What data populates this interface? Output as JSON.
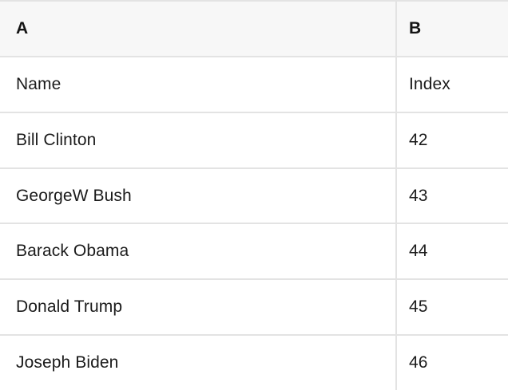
{
  "table": {
    "column_headers": [
      "A",
      "B"
    ],
    "rows": [
      {
        "a": "Name",
        "b": "Index"
      },
      {
        "a": "Bill Clinton",
        "b": "42"
      },
      {
        "a": "GeorgeW Bush",
        "b": "43"
      },
      {
        "a": "Barack Obama",
        "b": "44"
      },
      {
        "a": "Donald Trump",
        "b": "45"
      },
      {
        "a": "Joseph Biden",
        "b": "46"
      }
    ]
  },
  "colors": {
    "header_bg": "#f7f7f7",
    "row_bg": "#ffffff",
    "border": "#e3e3e3",
    "text": "#1b1b1b"
  }
}
